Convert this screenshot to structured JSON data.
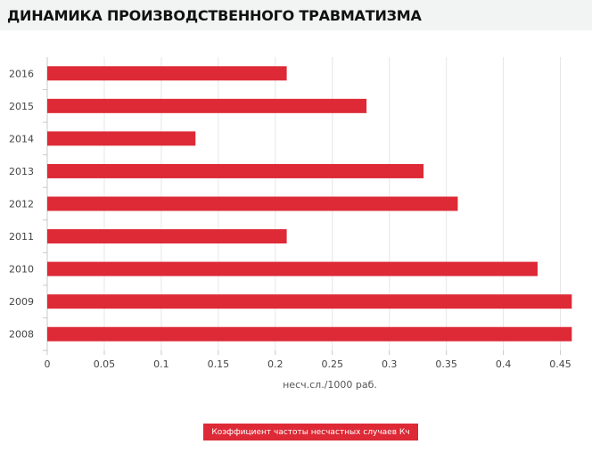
{
  "header": {
    "title": "ДИНАМИКА ПРОИЗВОДСТВЕННОГО ТРАВМАТИЗМА"
  },
  "colors": {
    "bar": "#dd2a36",
    "grid": "#e6e6e6",
    "axis": "#c8c8c8",
    "header_bg": "#f2f3f3"
  },
  "chart_data": {
    "type": "bar",
    "orientation": "horizontal",
    "title": "ДИНАМИКА ПРОИЗВОДСТВЕННОГО ТРАВМАТИЗМА",
    "categories": [
      "2016",
      "2015",
      "2014",
      "2013",
      "2012",
      "2011",
      "2010",
      "2009",
      "2008"
    ],
    "series": [
      {
        "name": "Коэффициент частоты несчастных случаев Кч",
        "values": [
          0.21,
          0.28,
          0.13,
          0.33,
          0.36,
          0.21,
          0.43,
          0.46,
          0.46
        ]
      }
    ],
    "xlabel": "несч.сл./1000 раб.",
    "ylabel": "",
    "xlim": [
      0,
      0.46
    ],
    "xticks": [
      "0",
      "0.05",
      "0.1",
      "0.15",
      "0.2",
      "0.25",
      "0.3",
      "0.35",
      "0.4",
      "0.45"
    ],
    "grid": true,
    "legend_position": "bottom-center"
  }
}
